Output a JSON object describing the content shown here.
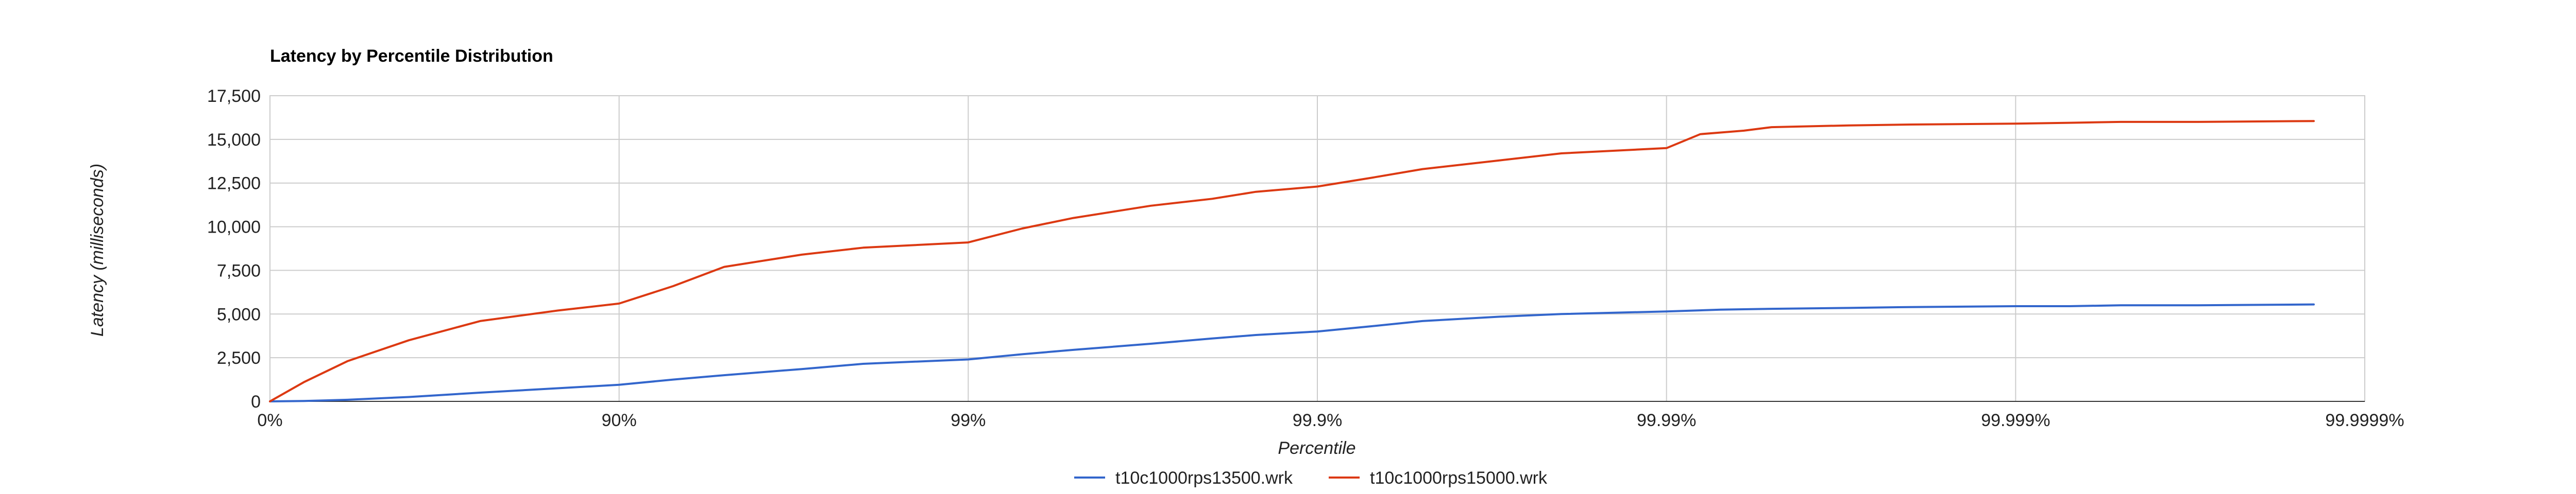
{
  "chart_data": {
    "type": "line",
    "title": "Latency by Percentile Distribution",
    "xlabel": "Percentile",
    "ylabel": "Latency (milliseconds)",
    "x_scale": "log-reciprocal",
    "x_tick_labels": [
      "0%",
      "90%",
      "99%",
      "99.9%",
      "99.99%",
      "99.999%",
      "99.9999%"
    ],
    "x_ticks": [
      0,
      90,
      99,
      99.9,
      99.99,
      99.999,
      99.9999
    ],
    "ylim": [
      0,
      17500
    ],
    "y_ticks": [
      0,
      2500,
      5000,
      7500,
      10000,
      12500,
      15000,
      17500
    ],
    "y_tick_labels": [
      "0",
      "2,500",
      "5,000",
      "7,500",
      "10,000",
      "12,500",
      "15,000",
      "17,500"
    ],
    "grid": true,
    "legend_position": "bottom",
    "series": [
      {
        "name": "t10c1000rps13500.wrk",
        "color": "#3366cc",
        "x": [
          0,
          20,
          40,
          60,
          75,
          85,
          90,
          93,
          95,
          97,
          98,
          99,
          99.3,
          99.5,
          99.7,
          99.8,
          99.85,
          99.9,
          99.93,
          99.95,
          99.97,
          99.98,
          99.99,
          99.993,
          99.995,
          99.997,
          99.998,
          99.999,
          99.9993,
          99.9995,
          99.9997,
          99.99986
        ],
        "y": [
          0,
          25,
          90,
          250,
          500,
          750,
          950,
          1250,
          1500,
          1850,
          2150,
          2400,
          2700,
          2950,
          3300,
          3600,
          3800,
          4000,
          4300,
          4600,
          4850,
          5000,
          5150,
          5250,
          5300,
          5350,
          5400,
          5450,
          5450,
          5500,
          5500,
          5550
        ]
      },
      {
        "name": "t10c1000rps15000.wrk",
        "color": "#dc3912",
        "x": [
          0,
          20,
          40,
          60,
          75,
          85,
          90,
          93,
          95,
          97,
          98,
          99,
          99.3,
          99.5,
          99.7,
          99.8,
          99.85,
          99.9,
          99.93,
          99.95,
          99.97,
          99.98,
          99.99,
          99.992,
          99.994,
          99.995,
          99.997,
          99.998,
          99.999,
          99.9993,
          99.9995,
          99.9997,
          99.99986
        ],
        "y": [
          0,
          1100,
          2300,
          3500,
          4600,
          5200,
          5600,
          6600,
          7700,
          8400,
          8800,
          9100,
          9900,
          10500,
          11200,
          11600,
          12000,
          12300,
          12800,
          13300,
          13800,
          14200,
          14500,
          15300,
          15500,
          15700,
          15800,
          15850,
          15900,
          15950,
          16000,
          16000,
          16050
        ]
      }
    ]
  }
}
